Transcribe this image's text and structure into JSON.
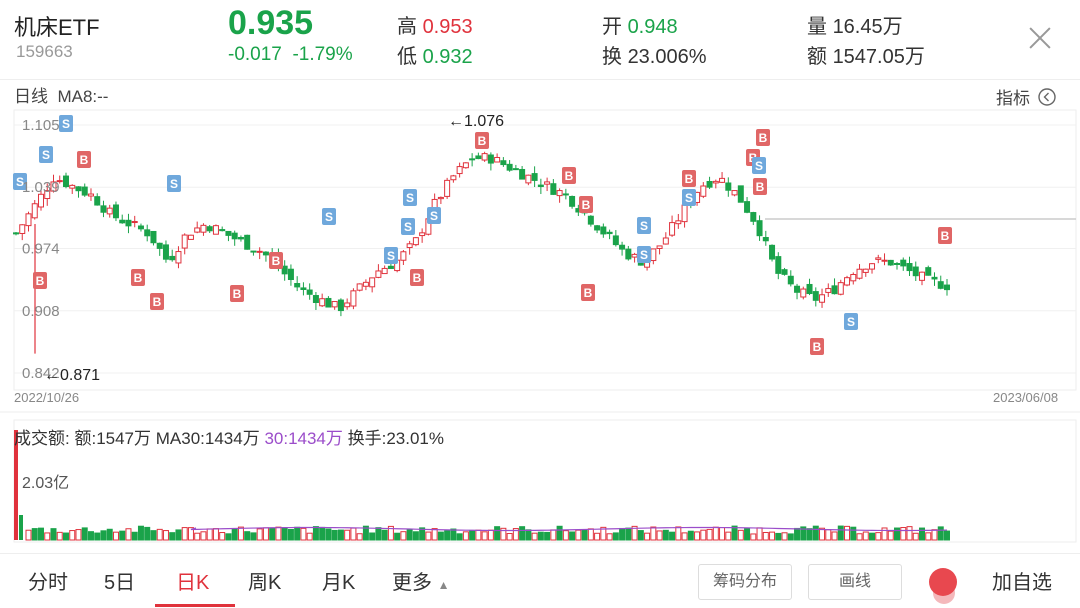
{
  "header": {
    "name": "机床ETF",
    "code": "159663",
    "price": "0.935",
    "change": "-0.017",
    "change_pct": "-1.79%",
    "high_label": "高",
    "high": "0.953",
    "low_label": "低",
    "low": "0.932",
    "open_label": "开",
    "open": "0.948",
    "turnover_label": "换",
    "turnover": "23.006%",
    "volume_label": "量",
    "volume": "16.45万",
    "amount_label": "额",
    "amount": "1547.05万",
    "close_icon": "close-icon"
  },
  "kline": {
    "period_label": "日线",
    "ma_label": "MA8:--",
    "indicator_label": "指标",
    "indicator_icon": "chevron-left-icon",
    "yticks": [
      "1.105",
      "1.039",
      "0.974",
      "0.908",
      "0.842"
    ],
    "max_annotation": "←1.076",
    "min_annotation": "←0.871",
    "date_start": "2022/10/26",
    "date_end": "2023/06/08",
    "buy_marker": "B",
    "sell_marker": "S",
    "colors": {
      "up": "#e0323c",
      "down": "#1aa34a",
      "sell": "#6fa8dc",
      "buy": "#e06666"
    }
  },
  "volume": {
    "title": "成交额:",
    "amount_text": "额:1547万",
    "ma30_text": "MA30:1434万",
    "ma30_alt_text": "30:1434万",
    "turnover_text": "换手:23.01%",
    "ytick": "2.03亿"
  },
  "chart_data": {
    "type": "candlestick",
    "title": "",
    "x_start": "2022/10/26",
    "x_end": "2023/06/08",
    "ylim": [
      0.842,
      1.105
    ],
    "max_point": 1.076,
    "min_point": 0.871,
    "close_path": [
      0.99,
      1.02,
      1.05,
      1.04,
      1.03,
      1.01,
      1.0,
      0.99,
      0.96,
      0.99,
      1.0,
      0.99,
      0.98,
      0.97,
      0.95,
      0.93,
      0.92,
      0.91,
      0.93,
      0.95,
      0.96,
      0.98,
      1.02,
      1.05,
      1.07,
      1.07,
      1.06,
      1.05,
      1.04,
      1.03,
      1.01,
      0.99,
      0.97,
      0.96,
      0.98,
      1.01,
      1.04,
      1.05,
      1.03,
      1.0,
      0.95,
      0.93,
      0.92,
      0.93,
      0.95,
      0.96,
      0.96,
      0.95,
      0.94,
      0.935
    ]
  },
  "tabs": [
    "分时",
    "5日",
    "日K",
    "周K",
    "月K",
    "更多"
  ],
  "active_tab": "日K",
  "more_icon": "triangle-up-icon",
  "buttons": {
    "chips": "筹码分布",
    "draw": "画线",
    "add_watch": "加自选"
  }
}
